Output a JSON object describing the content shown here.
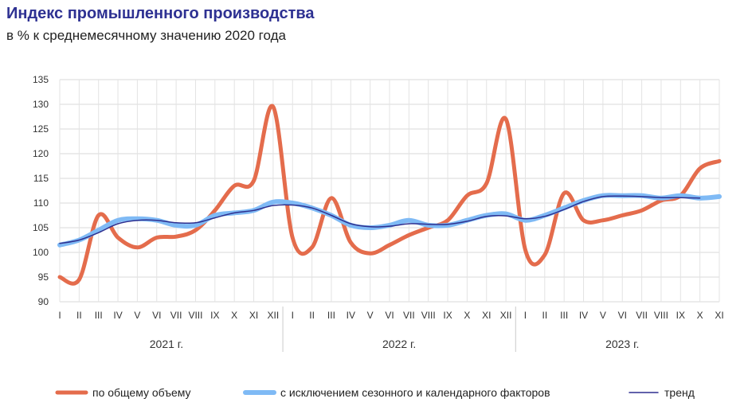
{
  "chart_data": {
    "type": "line",
    "title": "Индекс промышленного производства",
    "subtitle": "в % к среднемесячному значению 2020 года",
    "ylim": [
      90,
      135
    ],
    "yticks": [
      90,
      95,
      100,
      105,
      110,
      115,
      120,
      125,
      130,
      135
    ],
    "grid": true,
    "legend_position": "bottom",
    "months": [
      "I",
      "II",
      "III",
      "IV",
      "V",
      "VI",
      "VII",
      "VIII",
      "IX",
      "X",
      "XI",
      "XII",
      "I",
      "II",
      "III",
      "IV",
      "V",
      "VI",
      "VII",
      "VIII",
      "IX",
      "X",
      "XI",
      "XII",
      "I",
      "II",
      "III",
      "IV",
      "V",
      "VI",
      "VII",
      "VIII",
      "IX",
      "X",
      "XI"
    ],
    "years": [
      {
        "label": "2021 г.",
        "start": 0,
        "end": 11
      },
      {
        "label": "2022 г.",
        "start": 12,
        "end": 23
      },
      {
        "label": "2023 г.",
        "start": 24,
        "end": 34
      }
    ],
    "series": [
      {
        "name": "по общему объему",
        "color": "#e46c4c",
        "values": [
          95.0,
          94.5,
          107.5,
          103.0,
          101.0,
          103.0,
          103.2,
          104.5,
          108.5,
          113.5,
          114.5,
          129.5,
          103.0,
          101.0,
          111.0,
          102.0,
          99.8,
          101.5,
          103.5,
          105.0,
          106.5,
          111.5,
          114.0,
          127.0,
          100.5,
          99.5,
          112.0,
          106.5,
          106.5,
          107.5,
          108.5,
          110.5,
          111.5,
          117.0,
          118.5
        ]
      },
      {
        "name": "с исключением сезонного и календарного факторов",
        "color": "#7fbaf5",
        "values": [
          101.5,
          102.5,
          104.5,
          106.5,
          106.8,
          106.5,
          105.5,
          105.5,
          107.5,
          108.0,
          108.5,
          110.2,
          110.0,
          109.0,
          107.5,
          105.5,
          105.0,
          105.5,
          106.5,
          105.5,
          105.5,
          106.5,
          107.5,
          107.8,
          106.5,
          107.5,
          109.0,
          110.5,
          111.5,
          111.5,
          111.5,
          111.0,
          111.5,
          111.0,
          111.3
        ]
      },
      {
        "name": "тренд",
        "color": "#2e2f8f",
        "values": [
          101.8,
          102.5,
          104.0,
          105.8,
          106.5,
          106.5,
          106.0,
          106.0,
          107.0,
          108.0,
          108.5,
          109.5,
          109.6,
          109.0,
          107.5,
          105.8,
          105.2,
          105.3,
          105.8,
          105.7,
          105.7,
          106.3,
          107.3,
          107.4,
          106.8,
          107.3,
          108.7,
          110.3,
          111.3,
          111.4,
          111.3,
          111.1,
          111.1,
          111.0,
          null
        ]
      }
    ]
  }
}
